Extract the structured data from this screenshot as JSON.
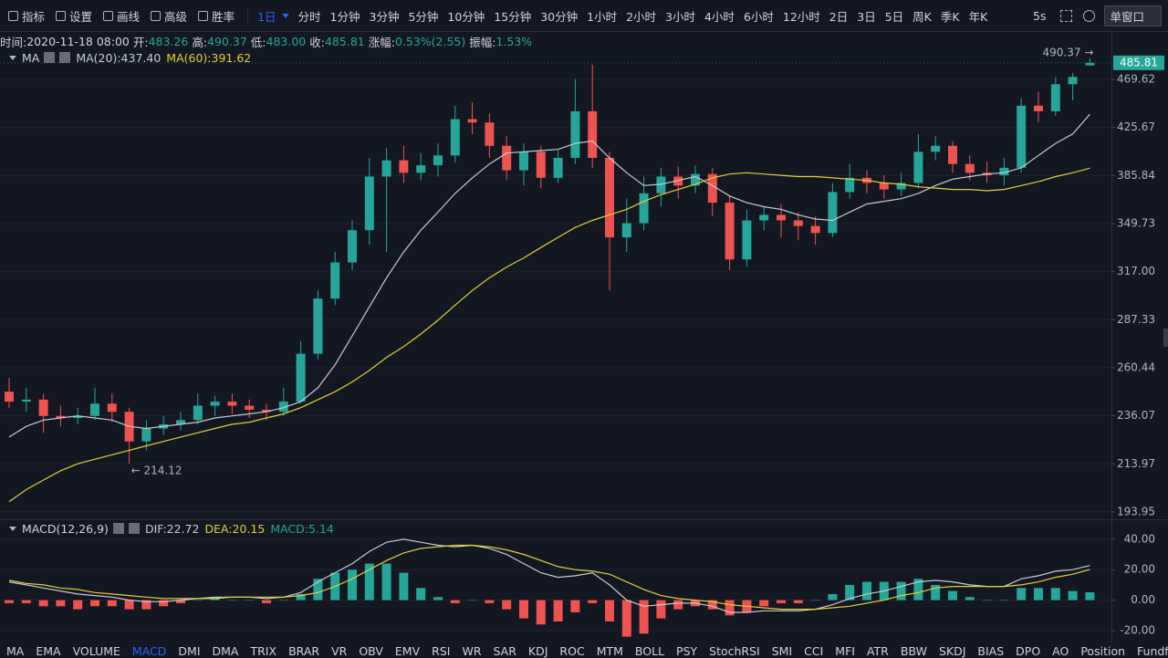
{
  "toolbar": {
    "tools": [
      "指标",
      "设置",
      "画线",
      "高级",
      "胜率"
    ],
    "interval": "1日",
    "intervals": [
      "分时",
      "1分钟",
      "3分钟",
      "5分钟",
      "10分钟",
      "15分钟",
      "30分钟",
      "1小时",
      "2小时",
      "3小时",
      "4小时",
      "6小时",
      "12小时",
      "2日",
      "3日",
      "5日",
      "周K",
      "季K",
      "年K"
    ],
    "refresh": "5s",
    "window": "单窗口"
  },
  "info": [
    {
      "label": "时间:",
      "value": "2020-11-18 08:00"
    },
    {
      "label": "开:",
      "value": "483.26"
    },
    {
      "label": "高:",
      "value": "490.37"
    },
    {
      "label": "低:",
      "value": "483.00"
    },
    {
      "label": "收:",
      "value": "485.81"
    },
    {
      "label": "涨幅:",
      "value": "0.53%(2.55)"
    },
    {
      "label": "振幅:",
      "value": "1.53%"
    }
  ],
  "indicators": [
    "MA",
    "EMA",
    "VOLUME",
    "MACD",
    "DMI",
    "DMA",
    "TRIX",
    "BRAR",
    "VR",
    "OBV",
    "EMV",
    "RSI",
    "WR",
    "SAR",
    "KDJ",
    "ROC",
    "MTM",
    "BOLL",
    "PSY",
    "StochRSI",
    "SMI",
    "CCI",
    "MFI",
    "ATR",
    "BBW",
    "SKDJ",
    "BIAS",
    "DPO",
    "AO",
    "Position",
    "Fundflow"
  ],
  "active_indicator": 3,
  "chart_data": [
    {
      "type": "candlestick",
      "title": "MA",
      "log": true,
      "grid": true,
      "up_color": "#26a69a",
      "down_color": "#ef5350",
      "ylim": [
        191.4,
        507.9
      ],
      "yticks": [
        469.62,
        425.67,
        385.84,
        349.73,
        {
          "value": 317,
          "label": "317.00"
        },
        287.33,
        260.44,
        236.07,
        213.97,
        193.95
      ],
      "last_price": 485.81,
      "open": [
        248,
        243,
        244,
        236,
        235,
        236,
        242,
        238,
        224,
        230,
        232,
        234,
        241,
        243,
        241,
        239,
        238,
        243,
        268,
        300,
        323,
        345,
        385,
        398,
        388,
        394,
        402,
        433,
        430,
        410,
        390,
        405,
        384,
        400,
        440,
        400,
        340,
        350,
        372,
        385,
        378,
        387,
        365,
        325,
        352,
        356,
        352,
        348,
        343,
        373,
        384,
        380,
        375,
        380,
        405,
        410,
        395,
        388,
        386,
        392,
        445,
        440,
        465,
        483.26
      ],
      "high": [
        255,
        250,
        247,
        241,
        240,
        250,
        247,
        240,
        234,
        236,
        238,
        247,
        246,
        247,
        244,
        242,
        250,
        275,
        305,
        330,
        352,
        400,
        408,
        410,
        404,
        412,
        445,
        448,
        438,
        418,
        412,
        410,
        406,
        470,
        484,
        405,
        368,
        385,
        392,
        393,
        394,
        392,
        370,
        360,
        362,
        364,
        358,
        355,
        380,
        395,
        390,
        386,
        388,
        420,
        418,
        414,
        402,
        397,
        400,
        452,
        458,
        472,
        476,
        490.37
      ],
      "low": [
        240,
        238,
        228,
        231,
        232,
        234,
        233,
        214.12,
        220,
        227,
        229,
        232,
        236,
        237,
        235,
        234,
        236,
        242,
        265,
        296,
        318,
        335,
        330,
        380,
        382,
        385,
        396,
        420,
        400,
        382,
        378,
        376,
        380,
        395,
        392,
        305,
        330,
        345,
        362,
        368,
        372,
        355,
        318,
        320,
        345,
        340,
        338,
        335,
        340,
        368,
        372,
        368,
        370,
        376,
        398,
        388,
        382,
        380,
        378,
        388,
        430,
        436,
        450,
        483
      ],
      "close": [
        243,
        244,
        236,
        235,
        236,
        242,
        238,
        224,
        230,
        232,
        234,
        241,
        243,
        241,
        239,
        238,
        243,
        268,
        300,
        323,
        345,
        385,
        398,
        388,
        394,
        402,
        433,
        430,
        410,
        390,
        405,
        384,
        400,
        440,
        400,
        340,
        350,
        372,
        385,
        378,
        387,
        365,
        325,
        352,
        356,
        352,
        348,
        343,
        373,
        384,
        380,
        375,
        380,
        405,
        410,
        395,
        388,
        386,
        392,
        445,
        440,
        465,
        472,
        485.81
      ],
      "series": [
        {
          "name": "MA(20):437.40",
          "color": "#c9cbd4",
          "values": [
            226,
            231,
            234,
            235,
            236,
            235,
            234,
            231,
            230,
            231,
            232,
            233,
            235,
            236,
            237,
            238,
            240,
            243,
            250,
            262,
            278,
            295,
            313,
            330,
            345,
            358,
            372,
            384,
            395,
            404,
            405,
            406,
            407,
            412,
            414,
            400,
            388,
            378,
            379,
            382,
            385,
            378,
            370,
            365,
            362,
            360,
            356,
            353,
            352,
            358,
            364,
            366,
            368,
            372,
            378,
            383,
            385,
            387,
            388,
            392,
            402,
            412,
            420,
            437.4
          ]
        },
        {
          "name": "MA(60):391.62",
          "color": "#e3cf3a",
          "values": [
            198,
            203,
            207,
            211,
            214,
            216,
            218,
            220,
            222,
            224,
            226,
            228,
            230,
            232,
            233,
            235,
            237,
            240,
            244,
            248,
            253,
            259,
            266,
            272,
            279,
            287,
            296,
            305,
            313,
            320,
            326,
            333,
            340,
            347,
            352,
            356,
            360,
            366,
            371,
            375,
            379,
            384,
            387,
            388,
            387,
            386,
            385,
            385,
            384,
            383,
            382,
            380,
            379,
            377,
            376,
            375,
            375,
            374,
            375,
            378,
            381,
            385,
            388,
            391.62
          ]
        }
      ],
      "annotations": [
        {
          "text": "490.37 →",
          "index": 63,
          "value": 490.37
        },
        {
          "text": "← 214.12",
          "index": 7,
          "value": 214.12
        }
      ]
    },
    {
      "type": "macd",
      "title": "MACD(12,26,9)",
      "grid": true,
      "up_color": "#26a69a",
      "down_color": "#ef5350",
      "ylim": [
        -28.4,
        51.9
      ],
      "yticks": [
        {
          "value": 40,
          "label": "40.00"
        },
        {
          "value": 20,
          "label": "20.00"
        },
        {
          "value": 0,
          "label": "0.00"
        },
        {
          "value": -20,
          "label": "-20.00"
        }
      ],
      "series": [
        {
          "name": "DIF:22.72",
          "color": "#c9cbd4",
          "kind": "line",
          "values": [
            12,
            10,
            8,
            6,
            4,
            3,
            2,
            0,
            -1,
            -1,
            0,
            1,
            2,
            2,
            2,
            1,
            2,
            5,
            12,
            18,
            24,
            32,
            38,
            40,
            38,
            36,
            35,
            36,
            34,
            30,
            24,
            18,
            15,
            16,
            18,
            10,
            0,
            -4,
            -3,
            -2,
            -2,
            -4,
            -8,
            -8,
            -7,
            -7,
            -7,
            -6,
            -3,
            1,
            4,
            6,
            9,
            12,
            13,
            12,
            10,
            9,
            9,
            14,
            16,
            19,
            20,
            22.72
          ]
        },
        {
          "name": "DEA:20.15",
          "color": "#e3cf3a",
          "kind": "line",
          "values": [
            13,
            11,
            10,
            8,
            7,
            5,
            4,
            3,
            2,
            1,
            1,
            1,
            1,
            2,
            2,
            2,
            2,
            3,
            5,
            9,
            14,
            20,
            26,
            31,
            34,
            35,
            36,
            36,
            35,
            33,
            30,
            26,
            22,
            20,
            19,
            17,
            12,
            7,
            3,
            1,
            0,
            -1,
            -3,
            -4,
            -5,
            -6,
            -6,
            -6,
            -5,
            -4,
            -2,
            0,
            3,
            5,
            8,
            9,
            9,
            9,
            9,
            10,
            12,
            15,
            17,
            20.15
          ]
        },
        {
          "name": "MACD:5.14",
          "color": "#26a69a",
          "kind": "bar",
          "values": [
            -2,
            -2,
            -4,
            -4,
            -6,
            -4,
            -4,
            -6,
            -6,
            -4,
            -2,
            0,
            2,
            0,
            0,
            -2,
            0,
            4,
            14,
            18,
            20,
            24,
            24,
            18,
            8,
            2,
            -2,
            0,
            -2,
            -6,
            -12,
            -16,
            -14,
            -8,
            -2,
            -14,
            -24,
            -22,
            -12,
            -6,
            -4,
            -6,
            -10,
            -8,
            -4,
            -2,
            -2,
            0,
            4,
            10,
            12,
            12,
            12,
            14,
            10,
            6,
            2,
            0,
            0,
            8,
            8,
            8,
            6,
            5.14
          ]
        }
      ]
    }
  ]
}
